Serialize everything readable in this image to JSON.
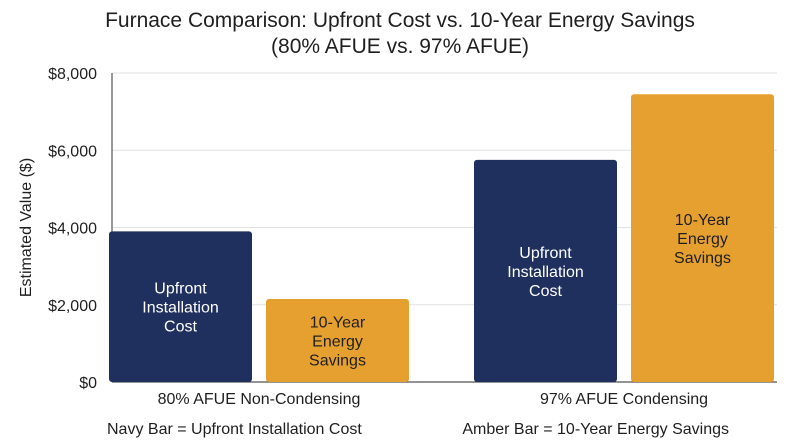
{
  "chart_data": {
    "type": "bar",
    "title": "Furnace Comparison: Upfront Cost vs. 10-Year Energy Savings",
    "subtitle": "(80% AFUE vs. 97% AFUE)",
    "categories": [
      "80% AFUE Non-Condensing",
      "97% AFUE Condensing"
    ],
    "series": [
      {
        "name": "Upfront Installation Cost",
        "color": "#1f2f5e",
        "label_color": "#ffffff",
        "values": [
          3900,
          5750
        ],
        "bar_labels": [
          [
            "Upfront",
            "Installation",
            "Cost"
          ],
          [
            "Upfront",
            "Installation",
            "Cost"
          ]
        ]
      },
      {
        "name": "10-Year Energy Savings",
        "color": "#e5a02f",
        "label_color": "#1f1f1f",
        "values": [
          2150,
          7450
        ],
        "bar_labels": [
          [
            "10-Year",
            "Energy",
            "Savings"
          ],
          [
            "10-Year",
            "Energy",
            "Savings"
          ]
        ]
      }
    ],
    "ylabel": "Estimated Value ($)",
    "xlabel": "",
    "ylim": [
      0,
      8000
    ],
    "yticks": [
      0,
      2000,
      4000,
      6000,
      8000
    ],
    "ytick_labels": [
      "$0",
      "$2,000",
      "$4,000",
      "$6,000",
      "$8,000"
    ],
    "grid": true,
    "legend": {
      "placement": "bottom",
      "entries": [
        "Navy Bar = Upfront Installation Cost",
        "Amber Bar = 10-Year Energy Savings"
      ]
    }
  }
}
